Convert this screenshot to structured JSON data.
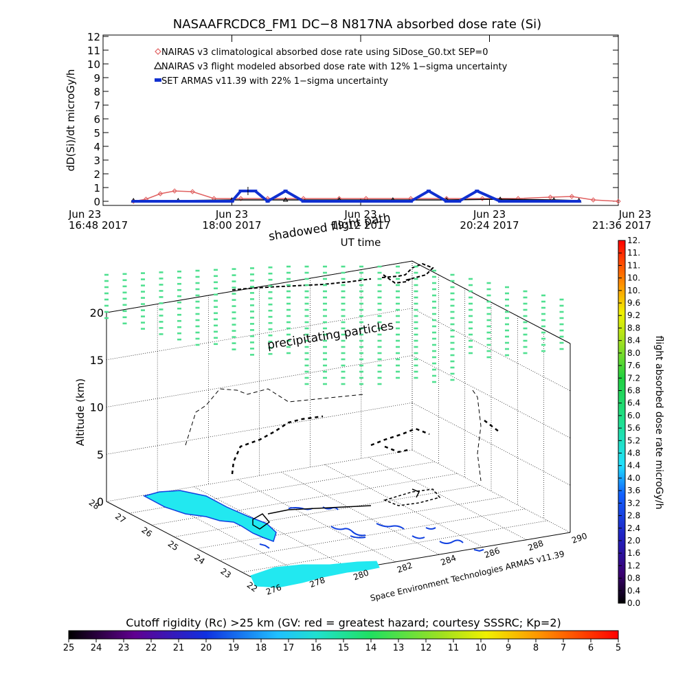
{
  "title": "NASAAFRCDC8_FM1 DC−8    N817NA absorbed dose rate (Si)",
  "chart_data": [
    {
      "type": "line",
      "ylabel": "dD(Si)/dt microGy/h",
      "xlabel": "UT time",
      "ylim": [
        0,
        12
      ],
      "yticks": [
        "0",
        "1",
        "2",
        "3",
        "4",
        "5",
        "6",
        "7",
        "8",
        "9",
        "10",
        "11",
        "12"
      ],
      "xticks": [
        {
          "date": "Jun 23",
          "time": "16:48 2017"
        },
        {
          "date": "Jun 23",
          "time": "18:00 2017"
        },
        {
          "date": "Jun 23",
          "time": "19:12 2017"
        },
        {
          "date": "Jun 23",
          "time": "20:24 2017"
        },
        {
          "date": "Jun 23",
          "time": "21:36 2017"
        }
      ],
      "xrange": [
        "16:48",
        "21:36"
      ],
      "legend_position": "top-left",
      "series": [
        {
          "name": "NAIRAS v3 climatological absorbed dose rate using SiDose_G0.txt SEP=0",
          "color": "#e06060",
          "marker": "diamond",
          "x": [
            "17:05",
            "17:12",
            "17:20",
            "17:28",
            "17:38",
            "17:50",
            "18:05",
            "18:20",
            "18:40",
            "19:00",
            "19:15",
            "19:40",
            "20:00",
            "20:20",
            "20:40",
            "20:58",
            "21:10",
            "21:22",
            "21:36"
          ],
          "y": [
            0.0,
            0.15,
            0.55,
            0.75,
            0.7,
            0.2,
            0.2,
            0.2,
            0.2,
            0.2,
            0.2,
            0.2,
            0.2,
            0.2,
            0.2,
            0.3,
            0.35,
            0.1,
            0.0
          ]
        },
        {
          "name": "NAIRAS v3 flight modeled absorbed dose rate with 12% 1−sigma uncertainty",
          "color": "#000000",
          "marker": "triangle",
          "x": [
            "17:05",
            "17:30",
            "18:00",
            "18:30",
            "19:00",
            "19:30",
            "20:00",
            "20:30",
            "21:00",
            "21:14"
          ],
          "y": [
            0.05,
            0.05,
            0.1,
            0.1,
            0.1,
            0.1,
            0.1,
            0.15,
            0.1,
            0.05
          ]
        },
        {
          "name": "SET ARMAS v11.39 with 22% 1−sigma uncertainty",
          "color": "#1030d0",
          "marker": "square",
          "x": [
            "17:05",
            "17:30",
            "18:00",
            "18:05",
            "18:13",
            "18:20",
            "18:30",
            "18:40",
            "19:00",
            "19:40",
            "19:50",
            "20:00",
            "20:07",
            "20:17",
            "20:30",
            "21:00",
            "21:14"
          ],
          "y": [
            0.0,
            0.0,
            0.0,
            0.75,
            0.75,
            0.0,
            0.75,
            0.0,
            0.0,
            0.0,
            0.75,
            0.0,
            0.0,
            0.75,
            0.0,
            0.0,
            0.0
          ]
        }
      ]
    },
    {
      "type": "scatter",
      "ylabel": "Altitude (km)",
      "zticks": [
        "0",
        "5",
        "10",
        "15",
        "20"
      ],
      "zlim": [
        0,
        20
      ],
      "lat_ticks": [
        "28",
        "27",
        "26",
        "25",
        "24",
        "23",
        "22"
      ],
      "lon_ticks": [
        "276",
        "278",
        "280",
        "282",
        "284",
        "286",
        "288",
        "290"
      ],
      "annotations": [
        "shadowed flight path",
        "precipitating particles",
        "Space Environment Technologies ARMAS v11.39"
      ],
      "colorbar": {
        "label": "flight absorbed dose rate microGy/h",
        "range": [
          0.0,
          12.0
        ],
        "ticks": [
          "0.0",
          "0.4",
          "0.8",
          "1.2",
          "1.6",
          "2.0",
          "2.4",
          "2.8",
          "3.2",
          "3.6",
          "4.0",
          "4.4",
          "4.8",
          "5.2",
          "5.6",
          "6.0",
          "6.4",
          "6.8",
          "7.2",
          "7.6",
          "8.0",
          "8.4",
          "8.8",
          "9.2",
          "9.6",
          "10.",
          "10.",
          "11.",
          "11.",
          "12."
        ]
      }
    },
    {
      "type": "heatmap",
      "title": "Cutoff rigidity (Rc) >25 km (GV: red = greatest hazard; courtesy SSSRC; Kp=2)",
      "ticks": [
        "25",
        "24",
        "23",
        "22",
        "21",
        "20",
        "19",
        "18",
        "17",
        "16",
        "15",
        "14",
        "13",
        "12",
        "11",
        "10",
        "9",
        "8",
        "7",
        "6",
        "5"
      ],
      "range": [
        25,
        5
      ]
    }
  ],
  "colors": {
    "climatological": "#e06060",
    "armas": "#1030d0",
    "precipitation": "#50e090",
    "land_fill": "#22e8f0",
    "coast": "#1040e0"
  }
}
